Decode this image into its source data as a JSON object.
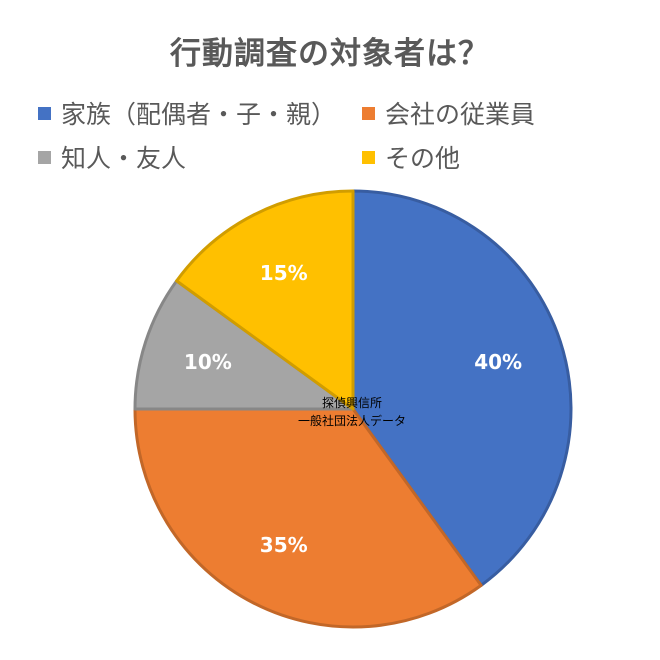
{
  "chart_data": {
    "type": "pie",
    "title": "行動調査の対象者は？",
    "categories": [
      "家族（配偶者・子・親）",
      "会社の従業員",
      "知人・友人",
      "その他"
    ],
    "values": [
      40,
      35,
      10,
      15
    ],
    "data_labels": [
      "40%",
      "35%",
      "10%",
      "15%"
    ],
    "colors": [
      "#4472C4",
      "#ED7D31",
      "#A5A5A5",
      "#FFC000"
    ],
    "legend_position": "top",
    "start_angle": "12 o'clock",
    "direction": "clockwise"
  },
  "watermark": {
    "line1": "探偵興信所",
    "line2": "一般社団法人データ"
  }
}
